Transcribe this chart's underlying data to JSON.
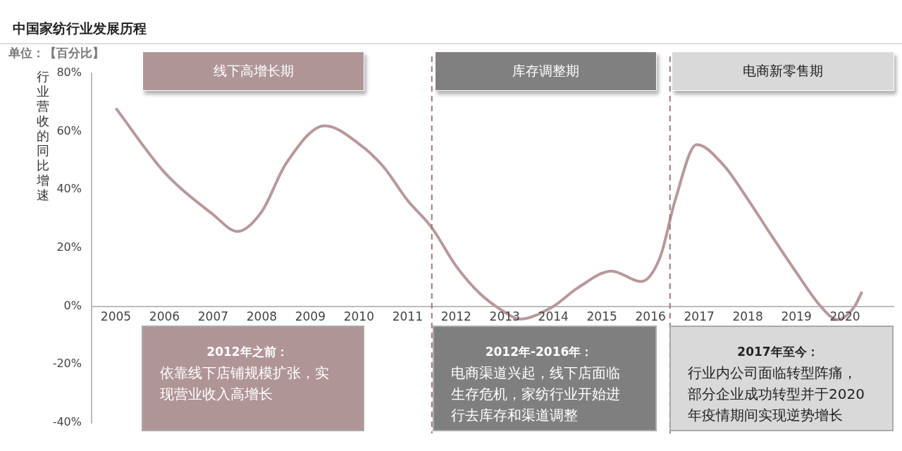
{
  "chart_data": {
    "type": "line",
    "title": "中国家纺行业发展历程",
    "subtitle": "单位：【百分比】",
    "ylabel": "行业营收的同比增速",
    "x": [
      2005,
      2006,
      2007,
      2007.5,
      2008,
      2008.5,
      2009.3,
      2010,
      2010.5,
      2011,
      2011.5,
      2012,
      2012.5,
      2013,
      2013.3,
      2014,
      2014.5,
      2015.2,
      2015.8,
      2016.2,
      2016.5,
      2016.95,
      2017.5,
      2018,
      2018.5,
      2019,
      2019.5,
      2019.85,
      2020.2,
      2020.35
    ],
    "series": [
      {
        "color": "#b7999b",
        "values": [
          68,
          46,
          31.5,
          25.7,
          32.5,
          49,
          62,
          55.8,
          48,
          36.4,
          27,
          13.8,
          4.2,
          -2,
          -4.4,
          0,
          6.3,
          12.1,
          8.5,
          17,
          36,
          55.5,
          48.5,
          36.8,
          24,
          11.6,
          0,
          -4.6,
          0,
          5
        ]
      }
    ],
    "xlim": [
      2004.5,
      2021
    ],
    "xticks": [
      2005,
      2006,
      2007,
      2008,
      2009,
      2010,
      2011,
      2012,
      2013,
      2014,
      2015,
      2016,
      2017,
      2018,
      2019,
      2020
    ],
    "ylim": [
      -40,
      80
    ],
    "yticks": [
      {
        "value": -40,
        "label": "-40%"
      },
      {
        "value": -20,
        "label": "-20%"
      },
      {
        "value": 0,
        "label": "0%"
      },
      {
        "value": 20,
        "label": "20%"
      },
      {
        "value": 40,
        "label": "40%"
      },
      {
        "value": 60,
        "label": "60%"
      },
      {
        "value": 80,
        "label": "80%"
      }
    ],
    "ref_lines": [
      {
        "axis": "x",
        "value": 2011.5,
        "color": "#a0787c",
        "line_style": "dashed"
      },
      {
        "axis": "x",
        "value": 2016.4,
        "color": "#a0787c",
        "line_style": "dashed"
      }
    ],
    "annotations": [
      "线下高增长期",
      "库存调整期",
      "电商新零售期",
      "2012年之前：",
      "依靠线下店铺规模扩张，实现营业收入高增长",
      "2012年-2016年：",
      "电商渠道兴起，线下店面临生存危机，家纺行业开始进行去库存和渠道调整",
      "2017年至今：",
      "行业内公司面临转型阵痛，部分企业成功转型并于2020年疫情期间实现逆势增长"
    ],
    "grid": false,
    "legend": false,
    "marker": "none",
    "line_style": "solid"
  }
}
